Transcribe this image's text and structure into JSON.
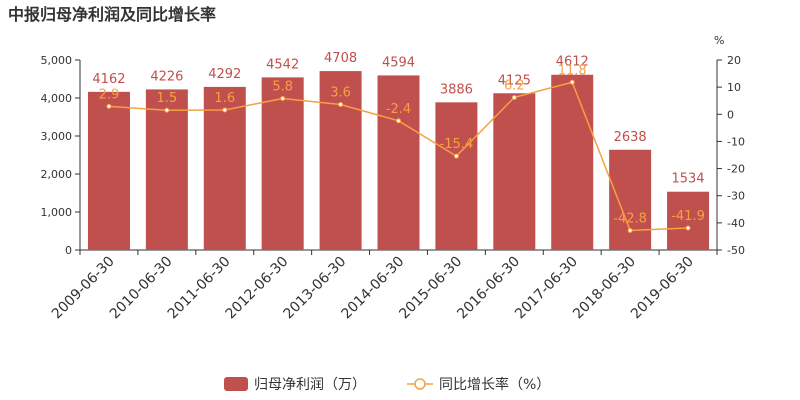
{
  "chart_data": {
    "type": "bar",
    "title": "中报归母净利润及同比增长率",
    "categories": [
      "2009-06-30",
      "2010-06-30",
      "2011-06-30",
      "2012-06-30",
      "2013-06-30",
      "2014-06-30",
      "2015-06-30",
      "2016-06-30",
      "2017-06-30",
      "2018-06-30",
      "2019-06-30"
    ],
    "series": [
      {
        "name": "归母净利润（万）",
        "type": "bar",
        "axis": "left",
        "values": [
          4162,
          4226,
          4292,
          4542,
          4708,
          4594,
          3886,
          4125,
          4612,
          2638,
          1534
        ],
        "labels": [
          "4162",
          "4226",
          "4292",
          "4542",
          "4708",
          "4594",
          "3886",
          "4125",
          "4612",
          "2638",
          "1534"
        ]
      },
      {
        "name": "同比增长率（%）",
        "type": "line",
        "axis": "right",
        "values": [
          2.9,
          1.5,
          1.6,
          5.8,
          3.6,
          -2.4,
          -15.4,
          6.2,
          11.8,
          -42.8,
          -41.9
        ],
        "labels": [
          "2.9",
          "1.5",
          "1.6",
          "5.8",
          "3.6",
          "-2.4",
          "-15.4",
          "6.2",
          "11.8",
          "-42.8",
          "-41.9"
        ]
      }
    ],
    "y_left": {
      "min": 0,
      "max": 5000,
      "ticks": [
        "0",
        "1,000",
        "2,000",
        "3,000",
        "4,000",
        "5,000"
      ]
    },
    "y_right": {
      "label": "%",
      "min": -50,
      "max": 20,
      "ticks": [
        "20",
        "10",
        "0",
        "-10",
        "-20",
        "-30",
        "-40",
        "-50"
      ]
    },
    "grid": false,
    "legend_position": "bottom-center",
    "colors": {
      "bar": "#c0504d",
      "line": "#f4a143",
      "axis": "#333333"
    }
  }
}
